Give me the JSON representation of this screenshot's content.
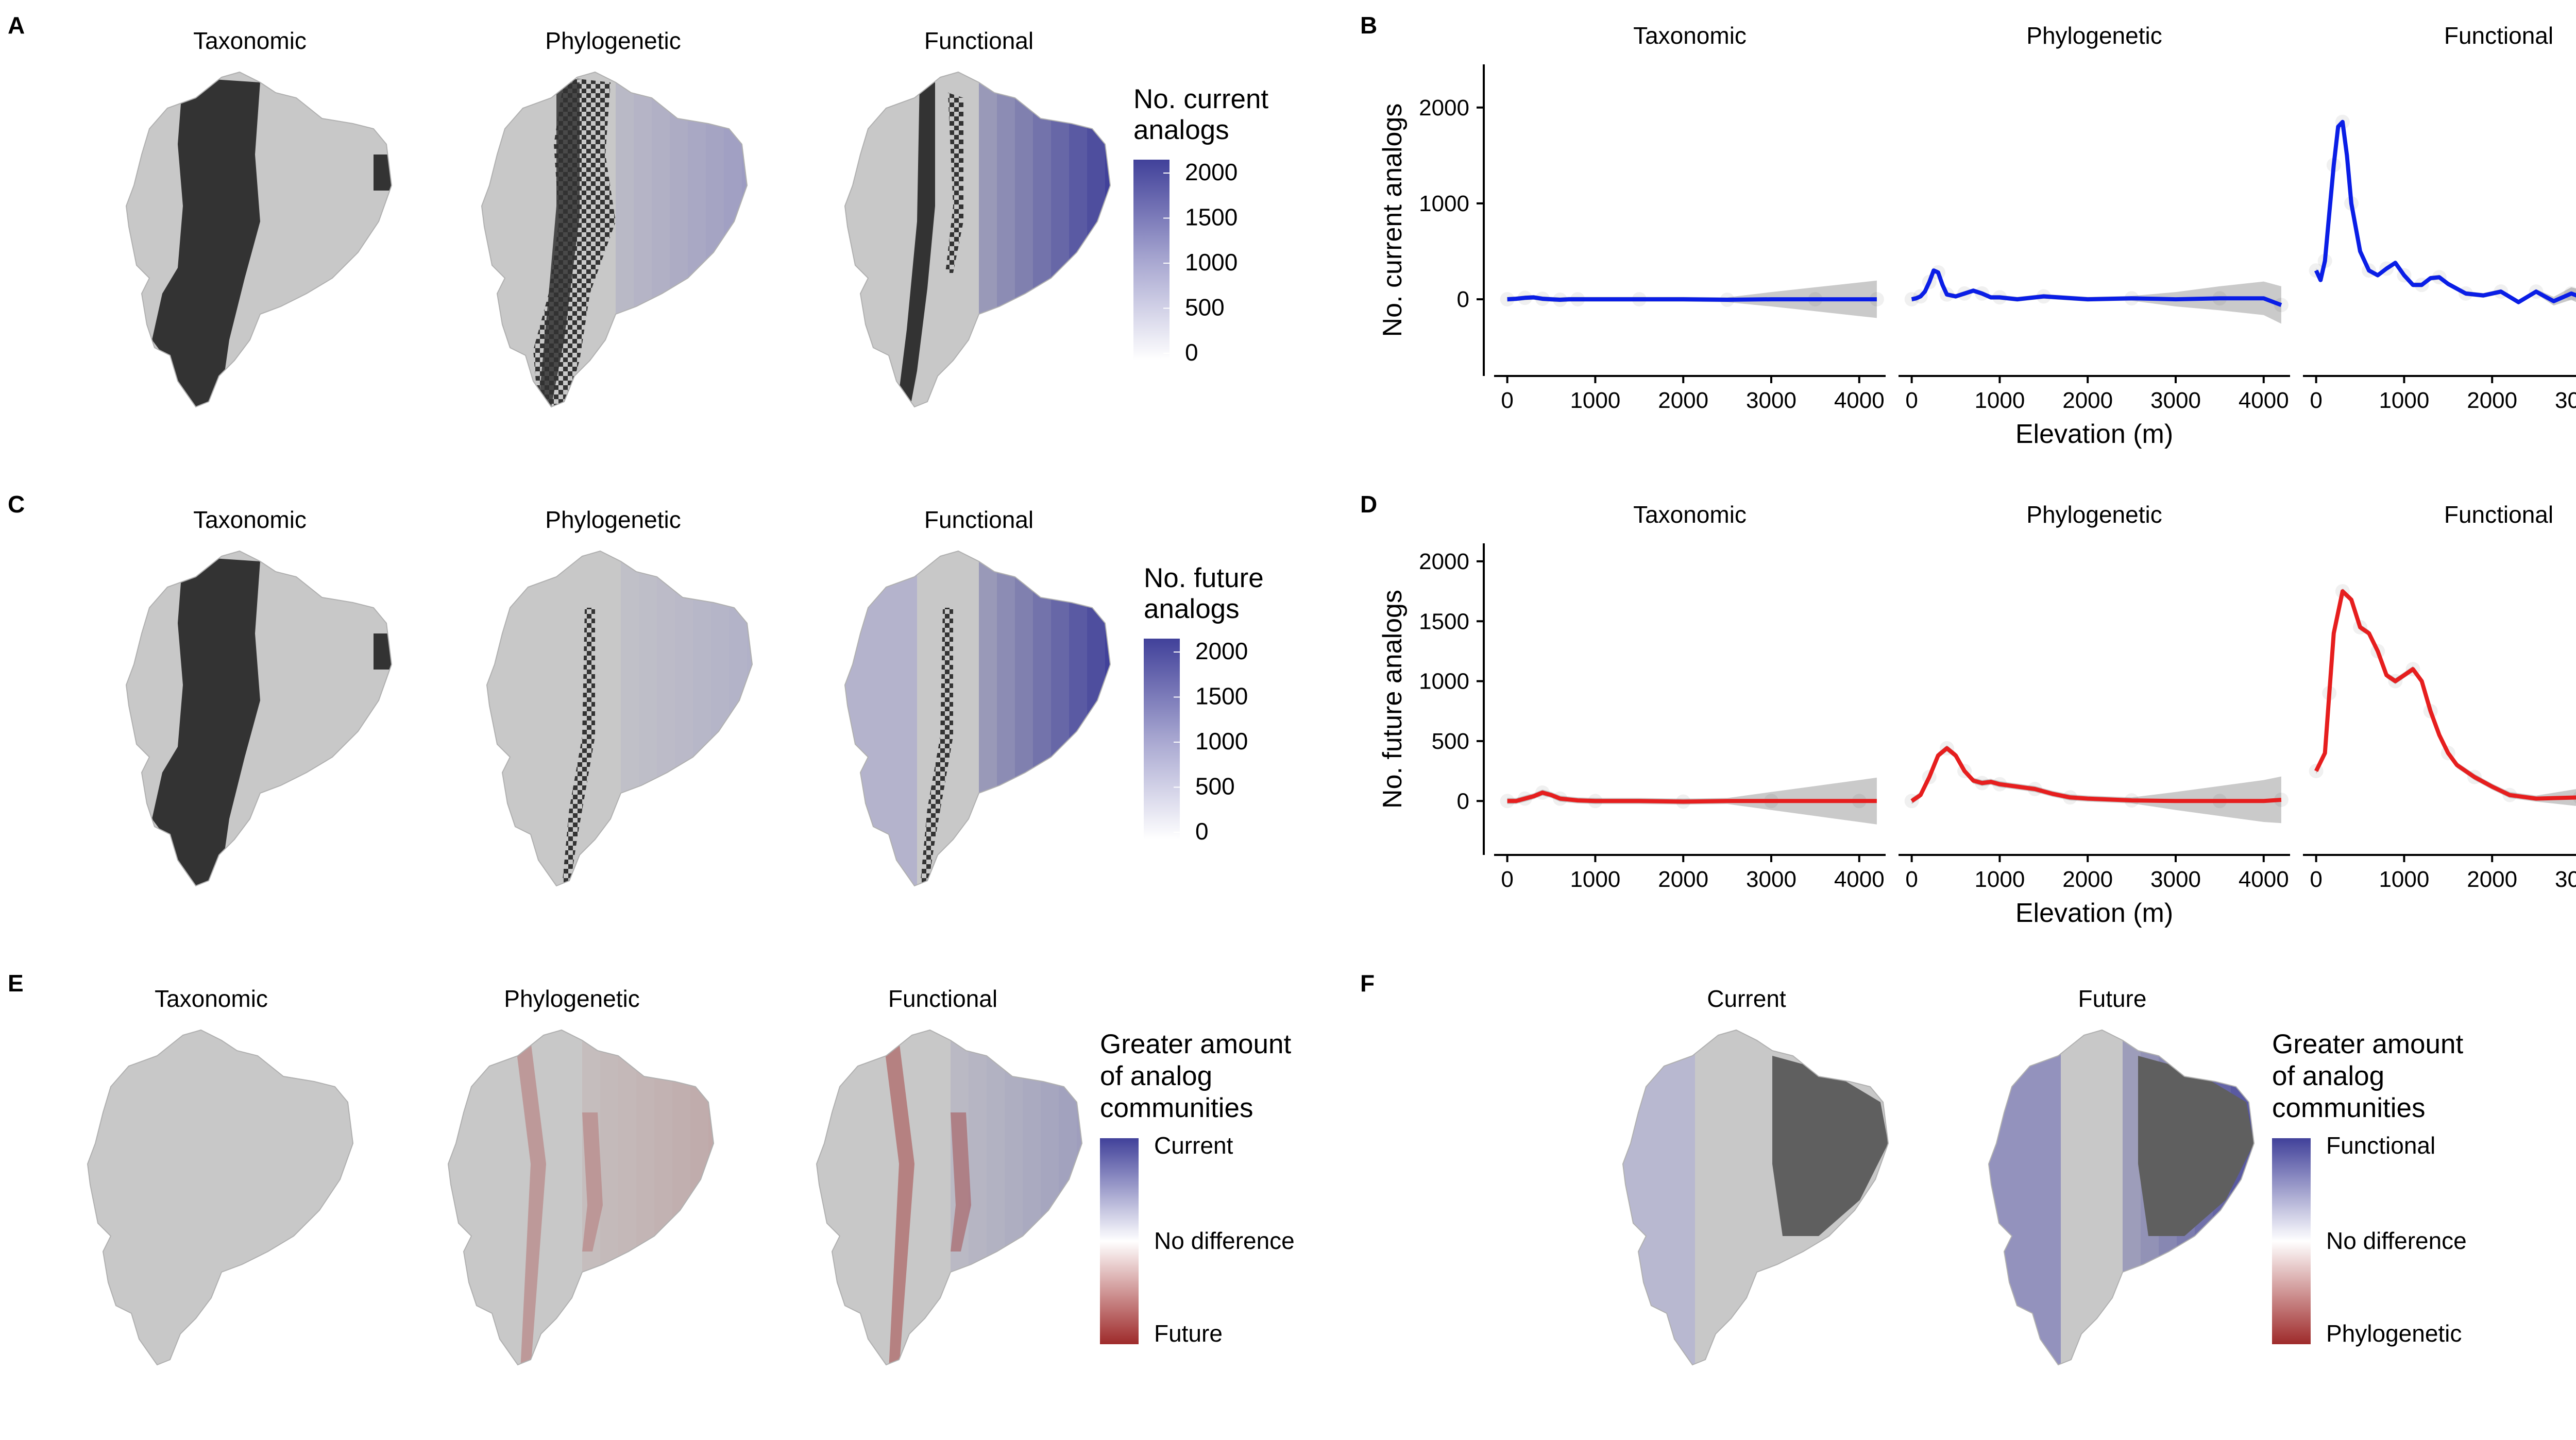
{
  "panel_labels": {
    "A": "A",
    "B": "B",
    "C": "C",
    "D": "D",
    "E": "E",
    "F": "F"
  },
  "maps": {
    "A": {
      "titles": [
        "Taxonomic",
        "Phylogenetic",
        "Functional"
      ],
      "shading": [
        0.0,
        0.12,
        0.82
      ],
      "dark_band": [
        "wide",
        "scatter",
        "thin"
      ],
      "legend_title": [
        "No. current",
        "analogs"
      ],
      "legend_ticks": [
        "2000",
        "1500",
        "1000",
        "500",
        "0"
      ]
    },
    "C": {
      "titles": [
        "Taxonomic",
        "Phylogenetic",
        "Functional"
      ],
      "shading": [
        0.0,
        0.1,
        0.82
      ],
      "dark_band": [
        "wide",
        "few",
        "few"
      ],
      "legend_title": [
        "No. future",
        "analogs"
      ],
      "legend_ticks": [
        "2000",
        "1500",
        "1000",
        "500",
        "0"
      ]
    },
    "E": {
      "titles": [
        "Taxonomic",
        "Phylogenetic",
        "Functional"
      ],
      "legend_title": [
        "Greater amount",
        "of analog",
        "communities"
      ],
      "legend_keys": [
        "Current",
        "No difference",
        "Future"
      ]
    },
    "F": {
      "titles": [
        "Current",
        "Future"
      ],
      "legend_title": [
        "Greater amount",
        "of analog",
        "communities"
      ],
      "legend_keys": [
        "Functional",
        "No difference",
        "Phylogenetic"
      ]
    }
  },
  "colors": {
    "map_gray": "#c8c8c8",
    "dark": "#333333",
    "high_blue": "#41419a",
    "high_red": "#9e2a2a",
    "current_line": "#0a1ee6",
    "future_line": "#e61e1e",
    "ribbon": "#bdbdbd"
  },
  "chart_data": [
    {
      "type": "line",
      "facets": [
        "Taxonomic",
        "Phylogenetic",
        "Functional"
      ],
      "xlabel": "Elevation (m)",
      "ylabel": "No. current analogs",
      "xticks": [
        "0",
        "1000",
        "2000",
        "3000",
        "4000"
      ],
      "yticks": [
        "0",
        "1000",
        "2000"
      ],
      "xlim": [
        -150,
        4300
      ],
      "ylim": [
        -800,
        2450
      ],
      "series": [
        {
          "x": [
            0,
            100,
            200,
            300,
            400,
            500,
            600,
            700,
            800,
            1000,
            1500,
            2000,
            2500,
            3000,
            3500,
            4000,
            4200
          ],
          "y": [
            0,
            5,
            15,
            20,
            5,
            0,
            -5,
            0,
            0,
            0,
            0,
            0,
            -5,
            0,
            0,
            0,
            0
          ]
        },
        {
          "x": [
            0,
            50,
            100,
            150,
            200,
            250,
            300,
            350,
            400,
            500,
            600,
            700,
            800,
            900,
            1000,
            1200,
            1500,
            2000,
            2500,
            3000,
            3500,
            4000,
            4200
          ],
          "y": [
            0,
            10,
            30,
            80,
            180,
            300,
            280,
            150,
            50,
            30,
            60,
            90,
            60,
            20,
            20,
            0,
            30,
            0,
            10,
            0,
            10,
            10,
            -60
          ]
        },
        {
          "x": [
            0,
            50,
            100,
            150,
            200,
            250,
            300,
            350,
            400,
            500,
            600,
            700,
            800,
            900,
            1000,
            1100,
            1200,
            1300,
            1400,
            1500,
            1700,
            1900,
            2100,
            2300,
            2500,
            2700,
            2900,
            3100,
            3300,
            3500,
            3700,
            3900,
            4100,
            4250
          ],
          "y": [
            300,
            200,
            400,
            900,
            1400,
            1800,
            1850,
            1500,
            1000,
            500,
            300,
            250,
            320,
            380,
            250,
            150,
            150,
            220,
            230,
            160,
            60,
            40,
            80,
            -30,
            80,
            -20,
            60,
            -10,
            40,
            0,
            20,
            -20,
            -50,
            -80
          ]
        }
      ]
    },
    {
      "type": "line",
      "facets": [
        "Taxonomic",
        "Phylogenetic",
        "Functional"
      ],
      "xlabel": "Elevation (m)",
      "ylabel": "No. future analogs",
      "xticks": [
        "0",
        "1000",
        "2000",
        "3000",
        "4000"
      ],
      "yticks": [
        "0",
        "500",
        "1000",
        "1500",
        "2000"
      ],
      "xlim": [
        -150,
        4300
      ],
      "ylim": [
        -450,
        2150
      ],
      "series": [
        {
          "x": [
            0,
            100,
            200,
            300,
            400,
            500,
            600,
            800,
            1000,
            1500,
            2000,
            2500,
            3000,
            3500,
            4000,
            4200
          ],
          "y": [
            0,
            0,
            20,
            40,
            70,
            50,
            20,
            5,
            0,
            0,
            -5,
            0,
            0,
            0,
            0,
            0
          ]
        },
        {
          "x": [
            0,
            100,
            200,
            300,
            400,
            500,
            600,
            700,
            800,
            900,
            1000,
            1200,
            1400,
            1600,
            1800,
            2000,
            2500,
            3000,
            3500,
            4000,
            4200
          ],
          "y": [
            0,
            50,
            200,
            380,
            440,
            380,
            250,
            170,
            150,
            160,
            140,
            120,
            100,
            60,
            30,
            20,
            5,
            0,
            0,
            0,
            10
          ]
        },
        {
          "x": [
            0,
            100,
            150,
            200,
            300,
            400,
            500,
            600,
            700,
            800,
            900,
            1000,
            1100,
            1200,
            1300,
            1400,
            1500,
            1600,
            1800,
            2000,
            2200,
            2500,
            3000,
            3500,
            4000,
            4250
          ],
          "y": [
            250,
            400,
            900,
            1400,
            1750,
            1680,
            1450,
            1400,
            1250,
            1050,
            1000,
            1050,
            1100,
            1000,
            750,
            550,
            400,
            300,
            200,
            120,
            50,
            20,
            30,
            60,
            100,
            140
          ]
        }
      ]
    }
  ]
}
